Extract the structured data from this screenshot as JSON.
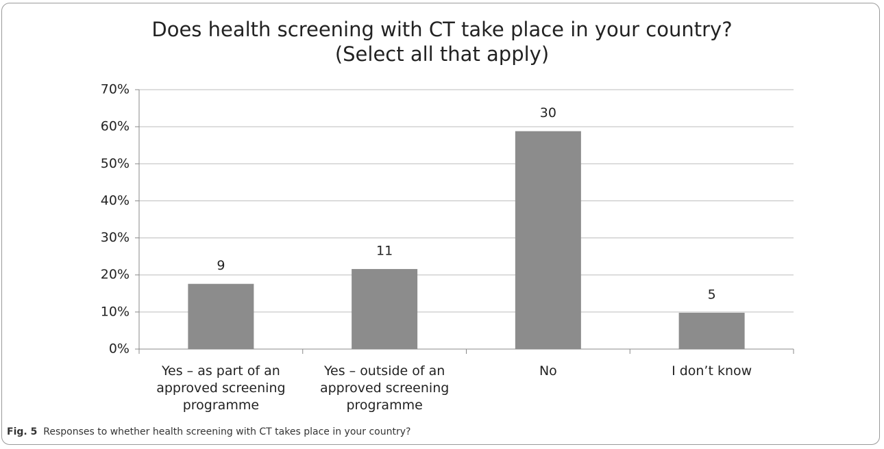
{
  "chart_data": {
    "type": "bar",
    "title": "Does health screening with CT take place in your country?",
    "subtitle": "(Select all that apply)",
    "categories": [
      "Yes – as part of an approved screening programme",
      "Yes – outside of an approved screening programme",
      "No",
      "I don’t know"
    ],
    "values": [
      17.6,
      21.6,
      58.8,
      9.8
    ],
    "counts": [
      9,
      11,
      30,
      5
    ],
    "color": "#8c8c8c",
    "ylim": [
      0,
      70
    ],
    "yticks": [
      {
        "value": 0,
        "label": "0%"
      },
      {
        "value": 10,
        "label": "10%"
      },
      {
        "value": 20,
        "label": "20%"
      },
      {
        "value": 30,
        "label": "30%"
      },
      {
        "value": 40,
        "label": "40%"
      },
      {
        "value": 50,
        "label": "50%"
      },
      {
        "value": 60,
        "label": "60%"
      },
      {
        "value": 70,
        "label": "70%"
      }
    ],
    "grid": true
  },
  "caption": {
    "label": "Fig. 5",
    "text": "Responses to whether health screening with CT takes place in your country?"
  }
}
